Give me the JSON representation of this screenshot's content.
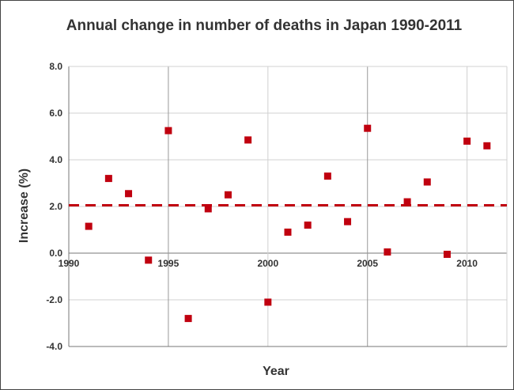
{
  "chart_data": {
    "type": "scatter",
    "title": "Annual change in number of deaths in Japan 1990-2011",
    "xlabel": "Year",
    "ylabel": "Increase (%)",
    "xlim": [
      1990,
      2012
    ],
    "ylim": [
      -4.0,
      8.0
    ],
    "xticks": [
      1990,
      1995,
      2000,
      2005,
      2010
    ],
    "xtick_labels": [
      "1990",
      "1995",
      "2000",
      "2005",
      "2010"
    ],
    "yticks": [
      -4.0,
      -2.0,
      0.0,
      2.0,
      4.0,
      6.0,
      8.0
    ],
    "ytick_labels": [
      "-4.0",
      "-2.0",
      "0.0",
      "2.0",
      "4.0",
      "6.0",
      "8.0"
    ],
    "grid": true,
    "series": [
      {
        "points": [
          {
            "x": 1991,
            "y": 1.15
          },
          {
            "x": 1992,
            "y": 3.2
          },
          {
            "x": 1993,
            "y": 2.55
          },
          {
            "x": 1994,
            "y": -0.3
          },
          {
            "x": 1995,
            "y": 5.25
          },
          {
            "x": 1996,
            "y": -2.8
          },
          {
            "x": 1997,
            "y": 1.9
          },
          {
            "x": 1998,
            "y": 2.5
          },
          {
            "x": 1999,
            "y": 4.85
          },
          {
            "x": 2000,
            "y": -2.1
          },
          {
            "x": 2001,
            "y": 0.9
          },
          {
            "x": 2002,
            "y": 1.2
          },
          {
            "x": 2003,
            "y": 3.3
          },
          {
            "x": 2004,
            "y": 1.35
          },
          {
            "x": 2005,
            "y": 5.35
          },
          {
            "x": 2006,
            "y": 0.05
          },
          {
            "x": 2007,
            "y": 2.2
          },
          {
            "x": 2008,
            "y": 3.05
          },
          {
            "x": 2009,
            "y": -0.05
          },
          {
            "x": 2010,
            "y": 4.8
          },
          {
            "x": 2011,
            "y": 4.6
          }
        ]
      }
    ],
    "reference_line": {
      "y": 2.05,
      "style": "dashed"
    },
    "colors": {
      "marker": "#c0000f",
      "reference_line": "#c0000f",
      "grid": "#d0d0d0",
      "axis": "#777777",
      "text": "#333333"
    }
  }
}
